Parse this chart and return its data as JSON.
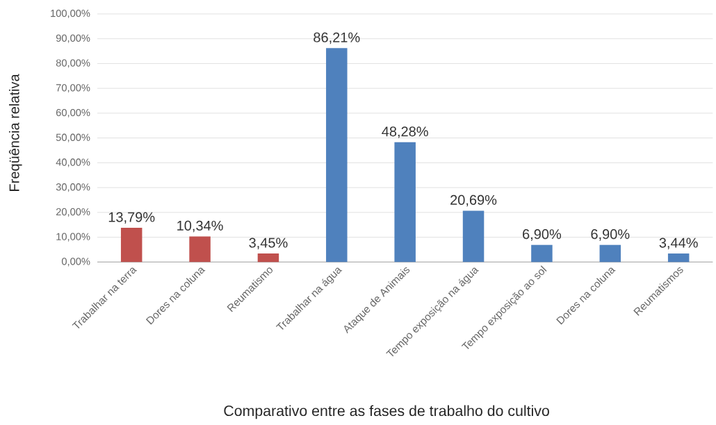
{
  "chart_data": {
    "type": "bar",
    "xlabel": "Comparativo entre as fases de trabalho do cultivo",
    "ylabel": "Freqüência relativa",
    "categories": [
      "Trabalhar na terra",
      "Dores na coluna",
      "Reumatismo",
      "Trabalhar na água",
      "Ataque de Animais",
      "Tempo exposição na água",
      "Tempo exposição ao sol",
      "Dores na coluna",
      "Reumatismos"
    ],
    "values": [
      13.79,
      10.34,
      3.45,
      86.21,
      48.28,
      20.69,
      6.9,
      6.9,
      3.44
    ],
    "colors": [
      "#c0504d",
      "#c0504d",
      "#c0504d",
      "#4f81bd",
      "#4f81bd",
      "#4f81bd",
      "#4f81bd",
      "#4f81bd",
      "#4f81bd"
    ],
    "value_labels": [
      "13,79%",
      "10,34%",
      "3,45%",
      "86,21%",
      "48,28%",
      "20,69%",
      "6,90%",
      "6,90%",
      "3,44%"
    ],
    "ylim": [
      0,
      100
    ],
    "yticks": [
      {
        "value": 0,
        "label": "0,00%"
      },
      {
        "value": 10,
        "label": "10,00%"
      },
      {
        "value": 20,
        "label": "20,00%"
      },
      {
        "value": 30,
        "label": "30,00%"
      },
      {
        "value": 40,
        "label": "40,00%"
      },
      {
        "value": 50,
        "label": "50,00%"
      },
      {
        "value": 60,
        "label": "60,00%"
      },
      {
        "value": 70,
        "label": "70,00%"
      },
      {
        "value": 80,
        "label": "80,00%"
      },
      {
        "value": 90,
        "label": "90,00%"
      },
      {
        "value": 100,
        "label": "100,00%"
      }
    ],
    "grid": "y"
  }
}
